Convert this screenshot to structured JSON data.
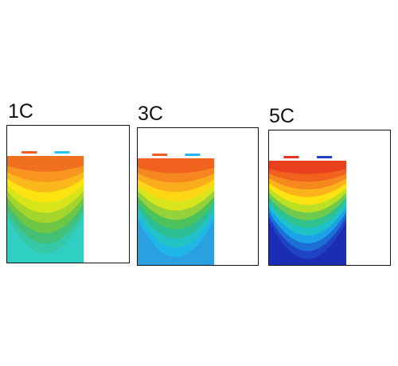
{
  "panels": [
    {
      "label": "1C",
      "tab_left_color": "#f15a24",
      "tab_right_color": "#29c5e6",
      "bands": [
        "#f07020",
        "#f7951f",
        "#fbb81c",
        "#fde30f",
        "#d8e51b",
        "#a4d52c",
        "#6ec644",
        "#44c076",
        "#36c7a7",
        "#2fcfc4"
      ]
    },
    {
      "label": "3C",
      "tab_left_color": "#f15a24",
      "tab_right_color": "#29b6f0",
      "bands": [
        "#f0621d",
        "#f6861f",
        "#faad1c",
        "#fdd713",
        "#d9e51c",
        "#95d23a",
        "#4cc25a",
        "#2dbf93",
        "#23c2c6",
        "#1fb7e8",
        "#2aa0e0"
      ]
    },
    {
      "label": "5C",
      "tab_left_color": "#e63222",
      "tab_right_color": "#1f3fc2",
      "bands": [
        "#e94020",
        "#f0621d",
        "#f6891e",
        "#fbb31c",
        "#fde312",
        "#bde025",
        "#6ecb4b",
        "#2fc28c",
        "#1fc1c8",
        "#1aa3e6",
        "#1d6fd6",
        "#1d44c4",
        "#1c2db5"
      ]
    }
  ]
}
